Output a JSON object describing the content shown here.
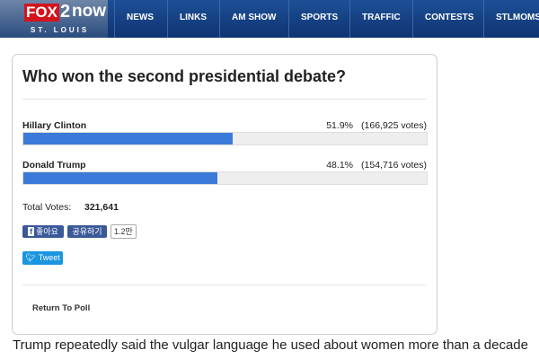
{
  "header": {
    "logo": {
      "brand": "FOX",
      "channel": "2",
      "suffix": "now",
      "city": "ST. LOUIS"
    },
    "nav": [
      "NEWS",
      "LINKS",
      "AM SHOW",
      "SPORTS",
      "TRAFFIC",
      "CONTESTS",
      "STLMOMS"
    ]
  },
  "poll": {
    "title": "Who won the second presidential debate?",
    "options": [
      {
        "name": "Hillary Clinton",
        "percent": 51.9,
        "percent_label": "51.9%",
        "votes_label": "(166,925 votes)"
      },
      {
        "name": "Donald Trump",
        "percent": 48.1,
        "percent_label": "48.1%",
        "votes_label": "(154,716 votes)"
      }
    ],
    "total_label": "Total Votes:",
    "total": "321,641",
    "like_button": "좋아요",
    "share_button": "공유하기",
    "share_count": "1.2만",
    "tweet_button": "Tweet",
    "return_link": "Return To Poll"
  },
  "article": {
    "text": "Trump repeatedly said the vulgar language he used about women more than a decade"
  }
}
